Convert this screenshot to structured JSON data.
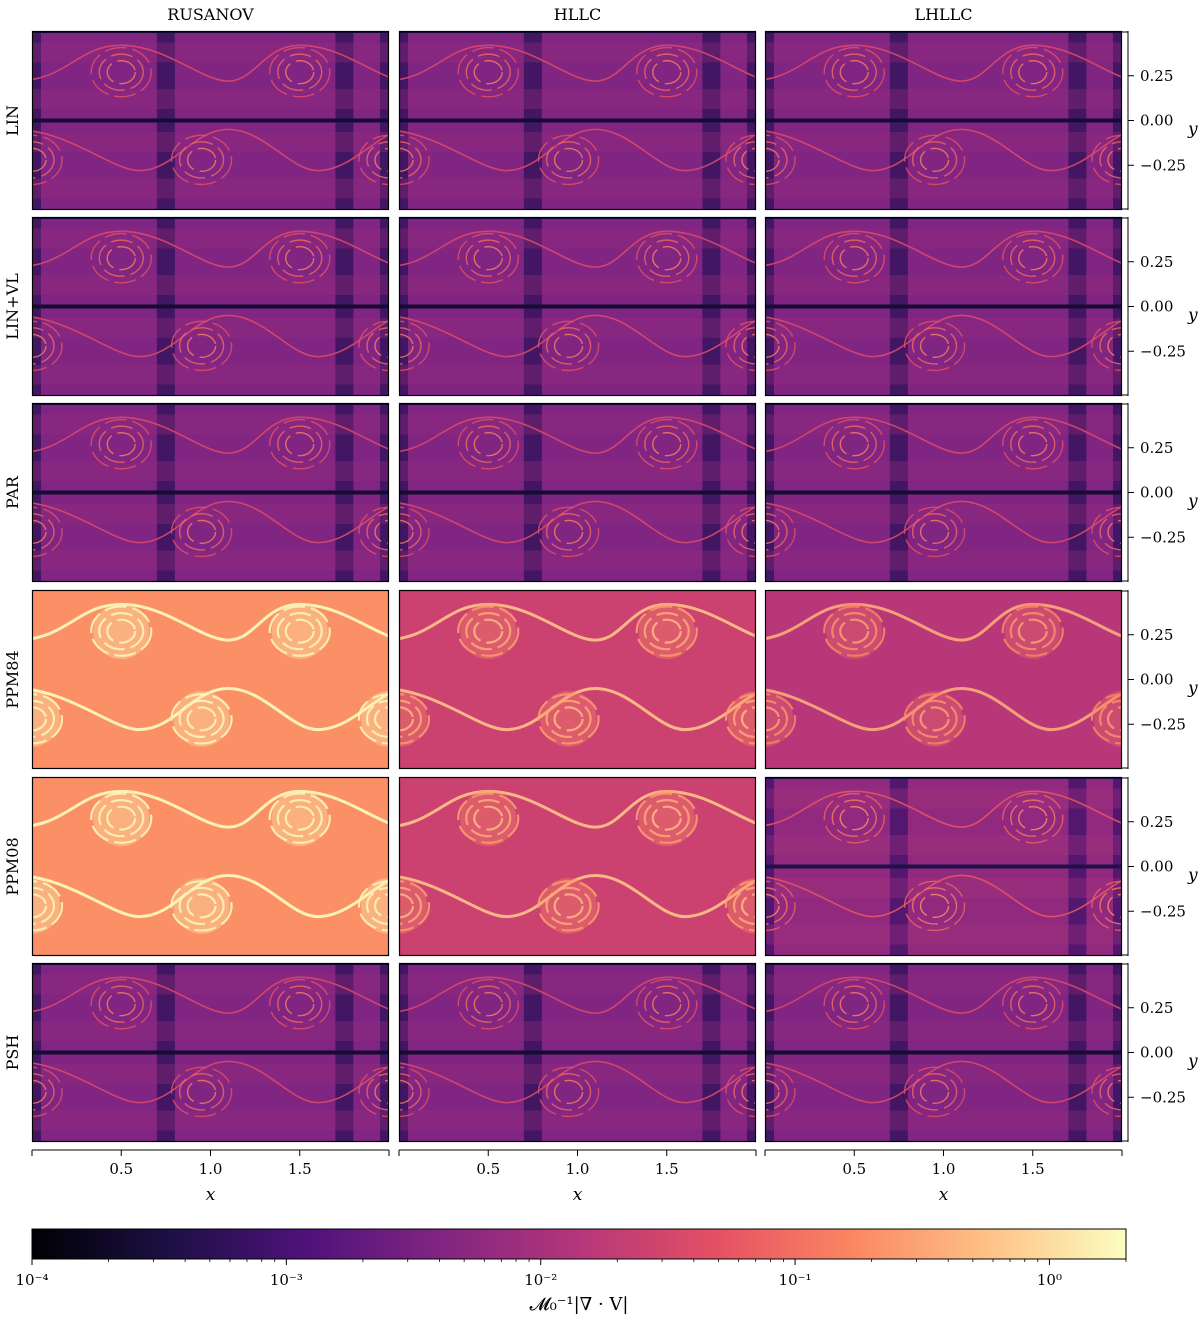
{
  "chart_data": {
    "type": "heatmap",
    "title": "",
    "columns": [
      "RUSANOV",
      "HLLC",
      "LHLLC"
    ],
    "rows": [
      "LIN",
      "LIN+VL",
      "PAR",
      "PPM84",
      "PPM08",
      "PSH"
    ],
    "xlabel": "x",
    "ylabel": "y",
    "x_range": [
      0,
      2
    ],
    "y_range": [
      -0.5,
      0.5
    ],
    "x_ticks": [
      0.5,
      1.0,
      1.5
    ],
    "x_tick_labels": [
      "0.5",
      "1.0",
      "1.5"
    ],
    "y_ticks": [
      0.25,
      0.0,
      -0.25
    ],
    "y_tick_labels": [
      "0.25",
      "0.00",
      "−0.25"
    ],
    "colorbar": {
      "label": "𝓜₀⁻¹|∇ · V|",
      "scale": "log",
      "range": [
        0.0001,
        2
      ],
      "ticks": [
        0.0001,
        0.001,
        0.01,
        0.1,
        1
      ],
      "tick_labels": [
        "10⁻⁴",
        "10⁻³",
        "10⁻²",
        "10⁻¹",
        "10⁰"
      ],
      "colormap": "magma",
      "colors": [
        "#000004",
        "#1c1044",
        "#4f127b",
        "#812581",
        "#b5367a",
        "#e55064",
        "#fb8761",
        "#fec287",
        "#fcfdbf"
      ]
    },
    "panel_levels": [
      [
        0.004,
        0.004,
        0.004
      ],
      [
        0.004,
        0.004,
        0.004
      ],
      [
        0.004,
        0.004,
        0.004
      ],
      [
        0.2,
        0.025,
        0.015
      ],
      [
        0.2,
        0.025,
        0.006
      ],
      [
        0.004,
        0.004,
        0.004
      ]
    ]
  }
}
